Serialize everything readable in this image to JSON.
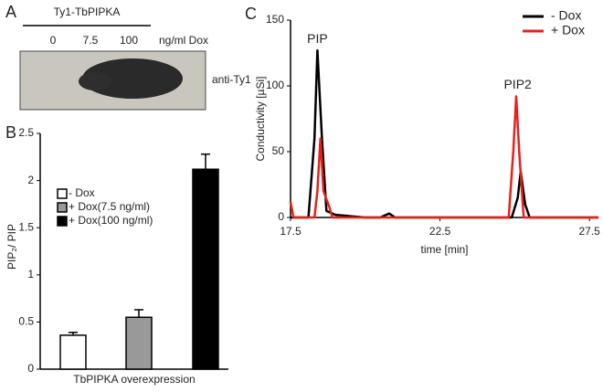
{
  "panel_labels": [
    "A",
    "B",
    "C"
  ],
  "blot": {
    "construct": "Ty1-TbPIPKA",
    "lanes": [
      "0",
      "7.5",
      "100"
    ],
    "lane_unit": "ng/ml Dox",
    "antibody": "anti-Ty1"
  },
  "chart_data": [
    {
      "type": "bar",
      "y_label": "PIP₂/ PIP",
      "x_label": "TbPIPKA overexpression",
      "ylim": [
        0,
        2.5
      ],
      "yticks": [
        0,
        0.5,
        1,
        1.5,
        2,
        2.5
      ],
      "legend": "upper-left",
      "series": [
        {
          "name": "- Dox",
          "color": "#ffffff",
          "values": [
            0.36
          ],
          "errors": [
            0.03
          ]
        },
        {
          "name": "+ Dox(7.5 ng/ml)",
          "color": "#999999",
          "values": [
            0.55
          ],
          "errors": [
            0.08
          ]
        },
        {
          "name": "+ Dox(100 ng/ml)",
          "color": "#000000",
          "values": [
            2.12
          ],
          "errors": [
            0.16
          ]
        }
      ]
    },
    {
      "type": "line",
      "y_label": "Conductivity [µSi]",
      "x_label": "time [min]",
      "xlim": [
        17.5,
        27.8
      ],
      "xticks": [
        17.5,
        22.5,
        27.5
      ],
      "ylim": [
        0,
        150
      ],
      "yticks": [
        0,
        50,
        100,
        150
      ],
      "legend": "upper-right",
      "annotations": [
        {
          "text": "PIP",
          "x": 18.4,
          "y": 127
        },
        {
          "text": "PIP2",
          "x": 25.1,
          "y": 92
        }
      ],
      "series": [
        {
          "name": "- Dox",
          "color": "#000000",
          "x": [
            17.5,
            18.1,
            18.3,
            18.4,
            18.55,
            18.7,
            19,
            20,
            20.5,
            20.8,
            21,
            24.9,
            25.1,
            25.2,
            25.35,
            25.5,
            27.8
          ],
          "values": [
            0,
            0,
            60,
            127,
            60,
            5,
            2,
            0,
            0,
            3,
            0,
            0,
            15,
            35,
            10,
            0,
            0
          ]
        },
        {
          "name": "+ Dox",
          "color": "#e8201c",
          "x": [
            17.5,
            17.6,
            18.3,
            18.4,
            18.5,
            18.6,
            18.8,
            18.9,
            24.8,
            24.95,
            25.05,
            25.15,
            25.3,
            27.8
          ],
          "values": [
            12,
            0,
            0,
            20,
            60,
            20,
            8,
            0,
            0,
            50,
            92,
            50,
            0,
            0
          ]
        }
      ]
    }
  ]
}
